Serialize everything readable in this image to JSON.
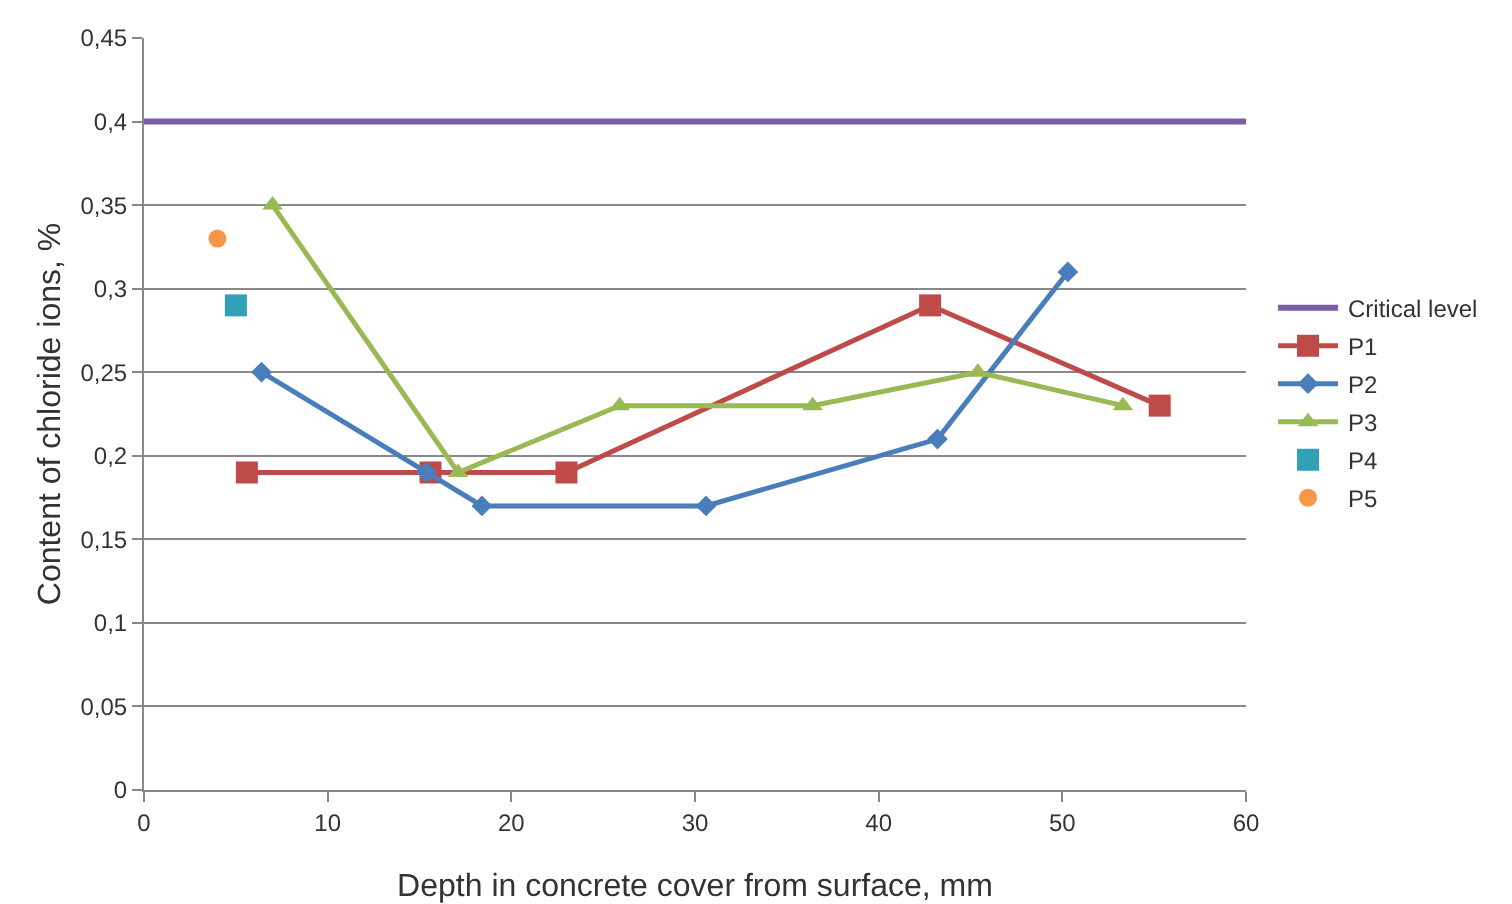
{
  "chart_data": {
    "type": "line",
    "xlabel": "Depth in concrete cover from surface, mm",
    "ylabel": "Content of chloride ions, %",
    "xlim": [
      0,
      60
    ],
    "xticks": [
      0,
      10,
      20,
      30,
      40,
      50,
      60
    ],
    "ylim": [
      0,
      0.45
    ],
    "yticks": [
      0,
      {
        "value": 0.05,
        "label": "0,05"
      },
      {
        "value": 0.1,
        "label": "0,1"
      },
      {
        "value": 0.15,
        "label": "0,15"
      },
      {
        "value": 0.2,
        "label": "0,2"
      },
      {
        "value": 0.25,
        "label": "0,25"
      },
      {
        "value": 0.3,
        "label": "0,3"
      },
      {
        "value": 0.35,
        "label": "0,35"
      },
      {
        "value": 0.4,
        "label": "0,4"
      },
      {
        "value": 0.45,
        "label": "0,45"
      }
    ],
    "grid": "y",
    "legend": "right",
    "ref_lines": [
      {
        "axis": "y",
        "value": 0.4,
        "label": "Critical level",
        "color": "#7b5ea7"
      }
    ],
    "series": [
      {
        "name": "P1",
        "color": "#be4b48",
        "marker": "square",
        "x": [
          5.6,
          15.6,
          23.0,
          42.8,
          55.3
        ],
        "values": [
          0.19,
          0.19,
          0.19,
          0.29,
          0.23
        ]
      },
      {
        "name": "P2",
        "color": "#4a7ebb",
        "marker": "diamond",
        "x": [
          6.4,
          15.4,
          18.4,
          30.6,
          43.2,
          50.3
        ],
        "values": [
          0.25,
          0.19,
          0.17,
          0.17,
          0.21,
          0.31
        ]
      },
      {
        "name": "P3",
        "color": "#98b954",
        "marker": "triangle",
        "x": [
          7.0,
          17.1,
          25.9,
          36.4,
          45.4,
          53.3
        ],
        "values": [
          0.35,
          0.19,
          0.23,
          0.23,
          0.25,
          0.23
        ]
      },
      {
        "name": "P4",
        "color": "#31a0b8",
        "marker": "square",
        "x": [
          5.0
        ],
        "values": [
          0.29
        ]
      },
      {
        "name": "P5",
        "color": "#f79646",
        "marker": "circle",
        "x": [
          4.0
        ],
        "values": [
          0.33
        ]
      }
    ]
  }
}
